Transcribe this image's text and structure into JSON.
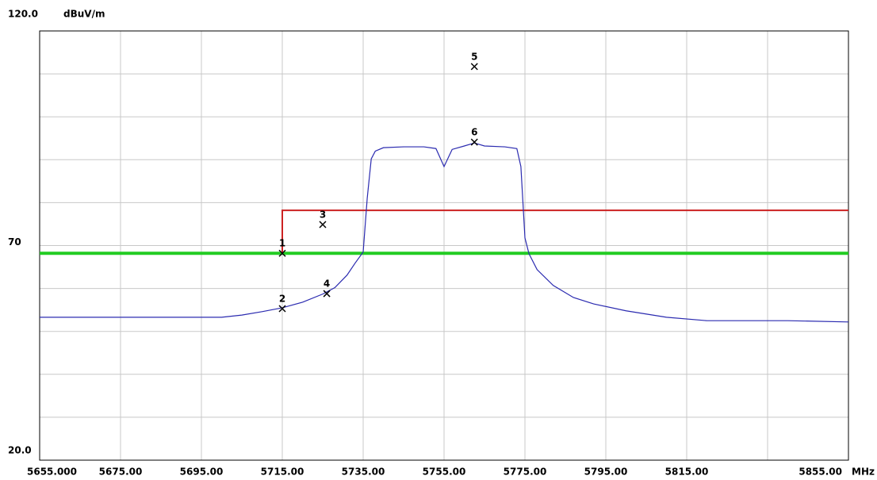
{
  "chart_data": {
    "type": "line",
    "y_unit": "dBuV/m",
    "x_unit": "MHz",
    "xlim": [
      5655,
      5855
    ],
    "xticks": [
      {
        "value": 5655,
        "label": "5655.000"
      },
      {
        "value": 5675,
        "label": "5675.00"
      },
      {
        "value": 5695,
        "label": "5695.00"
      },
      {
        "value": 5715,
        "label": "5715.00"
      },
      {
        "value": 5735,
        "label": "5735.00"
      },
      {
        "value": 5755,
        "label": "5755.00"
      },
      {
        "value": 5775,
        "label": "5775.00"
      },
      {
        "value": 5795,
        "label": "5795.00"
      },
      {
        "value": 5815,
        "label": "5815.00"
      },
      {
        "value": 5855,
        "label": "5855.00"
      }
    ],
    "xgrid": [
      5675,
      5695,
      5715,
      5735,
      5755,
      5775,
      5795,
      5815,
      5835
    ],
    "ylim": [
      20,
      120
    ],
    "yticks": [
      {
        "value": 120,
        "label": "120.0"
      },
      70,
      {
        "value": 20,
        "label": "20.0"
      }
    ],
    "ygrid": [
      30,
      40,
      50,
      60,
      70,
      80,
      90,
      100,
      110
    ],
    "grid": true,
    "series": [
      {
        "color": "#2b2bb0",
        "x": [
          5655,
          5700,
          5705,
          5710,
          5715,
          5720,
          5725,
          5728,
          5731,
          5733,
          5735,
          5736,
          5737,
          5738,
          5740,
          5745,
          5750,
          5753,
          5755,
          5757,
          5760,
          5762.5,
          5765,
          5770,
          5773,
          5774,
          5775,
          5776,
          5778,
          5782,
          5787,
          5792,
          5800,
          5810,
          5820,
          5840,
          5855
        ],
        "values": [
          53.3,
          53.3,
          53.8,
          54.6,
          55.5,
          56.8,
          58.7,
          60.2,
          63.1,
          65.9,
          68.5,
          81,
          90.2,
          92,
          92.8,
          93,
          93,
          92.6,
          88.4,
          92.4,
          93.2,
          93.9,
          93.2,
          93,
          92.6,
          88.4,
          71.8,
          68.1,
          64.4,
          60.7,
          57.9,
          56.4,
          54.8,
          53.3,
          52.5,
          52.5,
          52.2
        ]
      }
    ],
    "limit_lines": [
      {
        "color": "#22cc22",
        "x": [
          5655,
          5855
        ],
        "values": [
          68.2,
          68.2
        ]
      },
      {
        "color": "#cc2222",
        "x": [
          5715,
          5715,
          5855
        ],
        "values": [
          68.2,
          78.2,
          78.2
        ]
      }
    ],
    "markers": [
      {
        "label": "1",
        "x": 5715,
        "y": 68.2
      },
      {
        "label": "2",
        "x": 5715,
        "y": 55.3
      },
      {
        "label": "3",
        "x": 5725,
        "y": 74.9
      },
      {
        "label": "4",
        "x": 5726,
        "y": 58.8
      },
      {
        "label": "5",
        "x": 5762.5,
        "y": 111.7
      },
      {
        "label": "6",
        "x": 5762.5,
        "y": 94.1
      }
    ]
  }
}
